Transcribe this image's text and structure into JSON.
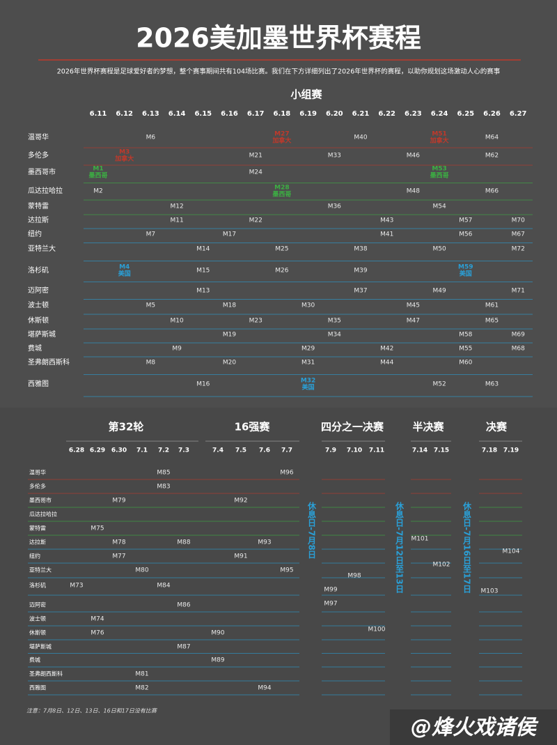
{
  "title": "2026美加墨世界杯赛程",
  "subtitle": "2026年世界杯赛程是足球爱好者的梦想，整个赛事期间共有104场比赛。我们在下方详细列出了2026年世界杯的赛程，以助你规划这场激动人心的赛事",
  "group_stage": {
    "title": "小组赛",
    "dates": [
      "6.11",
      "6.12",
      "6.13",
      "6.14",
      "6.15",
      "6.16",
      "6.17",
      "6.18",
      "6.19",
      "6.20",
      "6.21",
      "6.22",
      "6.23",
      "6.24",
      "6.25",
      "6.26",
      "6.27"
    ],
    "rows": [
      {
        "city": "温哥华",
        "color": "#c0392b",
        "cells": [
          null,
          null,
          "M6",
          null,
          null,
          null,
          null,
          {
            "label": "M27",
            "team": "加拿大"
          },
          null,
          null,
          "M40",
          null,
          null,
          {
            "label": "M51",
            "team": "加拿大"
          },
          null,
          "M64",
          null
        ]
      },
      {
        "city": "多伦多",
        "color": "#c0392b",
        "cells": [
          null,
          {
            "label": "M3",
            "team": "加拿大"
          },
          null,
          null,
          null,
          null,
          "M21",
          null,
          null,
          "M33",
          null,
          null,
          "M46",
          null,
          null,
          "M62",
          null
        ]
      },
      {
        "city": "墨西哥市",
        "color": "#3cb043",
        "cells": [
          {
            "label": "M1",
            "team": "墨西哥"
          },
          null,
          null,
          null,
          null,
          null,
          "M24",
          null,
          null,
          null,
          null,
          null,
          null,
          {
            "label": "M53",
            "team": "墨西哥"
          },
          null,
          null,
          null
        ]
      },
      {
        "city": "瓜达拉哈拉",
        "color": "#3cb043",
        "cells": [
          "M2",
          null,
          null,
          null,
          null,
          null,
          null,
          {
            "label": "M28",
            "team": "墨西哥"
          },
          null,
          null,
          null,
          null,
          "M48",
          null,
          null,
          "M66",
          null
        ]
      },
      {
        "city": "蒙特雷",
        "color": "#3cb043",
        "cells": [
          null,
          null,
          null,
          "M12",
          null,
          null,
          null,
          null,
          null,
          "M36",
          null,
          null,
          null,
          "M54",
          null,
          null,
          null
        ]
      },
      {
        "city": "达拉斯",
        "color": "#2a9fd6",
        "cells": [
          null,
          null,
          null,
          "M11",
          null,
          null,
          "M22",
          null,
          null,
          null,
          null,
          "M43",
          null,
          null,
          "M57",
          null,
          "M70"
        ]
      },
      {
        "city": "纽约",
        "color": "#2a9fd6",
        "cells": [
          null,
          null,
          "M7",
          null,
          null,
          "M17",
          null,
          null,
          null,
          null,
          null,
          "M41",
          null,
          null,
          "M56",
          null,
          "M67"
        ]
      },
      {
        "city": "亚特兰大",
        "color": "#2a9fd6",
        "cells": [
          null,
          null,
          null,
          null,
          "M14",
          null,
          null,
          "M25",
          null,
          null,
          "M38",
          null,
          null,
          "M50",
          null,
          null,
          "M72"
        ]
      },
      {
        "city": "洛杉矶",
        "color": "#2a9fd6",
        "cells": [
          null,
          {
            "label": "M4",
            "team": "美国"
          },
          null,
          null,
          "M15",
          null,
          null,
          "M26",
          null,
          null,
          "M39",
          null,
          null,
          null,
          {
            "label": "M59",
            "team": "美国"
          },
          null,
          null
        ]
      },
      {
        "city": "迈阿密",
        "color": "#2a9fd6",
        "cells": [
          null,
          null,
          null,
          null,
          "M13",
          null,
          null,
          null,
          null,
          null,
          "M37",
          null,
          null,
          "M49",
          null,
          null,
          "M71"
        ]
      },
      {
        "city": "波士顿",
        "color": "#2a9fd6",
        "cells": [
          null,
          null,
          "M5",
          null,
          null,
          "M18",
          null,
          null,
          "M30",
          null,
          null,
          null,
          "M45",
          null,
          null,
          "M61",
          null
        ]
      },
      {
        "city": "休斯顿",
        "color": "#2a9fd6",
        "cells": [
          null,
          null,
          null,
          "M10",
          null,
          null,
          "M23",
          null,
          null,
          "M35",
          null,
          null,
          "M47",
          null,
          null,
          "M65",
          null
        ]
      },
      {
        "city": "堪萨斯城",
        "color": "#2a9fd6",
        "cells": [
          null,
          null,
          null,
          null,
          null,
          "M19",
          null,
          null,
          null,
          "M34",
          null,
          null,
          null,
          null,
          "M58",
          null,
          "M69"
        ]
      },
      {
        "city": "费城",
        "color": "#2a9fd6",
        "cells": [
          null,
          null,
          null,
          "M9",
          null,
          null,
          null,
          null,
          "M29",
          null,
          null,
          "M42",
          null,
          null,
          "M55",
          null,
          "M68"
        ]
      },
      {
        "city": "圣弗朗西斯科",
        "color": "#2a9fd6",
        "cells": [
          null,
          null,
          "M8",
          null,
          null,
          "M20",
          null,
          null,
          "M31",
          null,
          null,
          "M44",
          null,
          null,
          "M60",
          null,
          null
        ]
      },
      {
        "city": "西雅图",
        "color": "#2a9fd6",
        "cells": [
          null,
          null,
          null,
          null,
          "M16",
          null,
          null,
          null,
          {
            "label": "M32",
            "team": "美国"
          },
          null,
          null,
          null,
          null,
          "M52",
          null,
          "M63",
          null
        ]
      }
    ]
  },
  "knockout": {
    "rounds": [
      {
        "title": "第32轮",
        "dates": [
          "6.28",
          "6.29",
          "6.30",
          "7.1",
          "7.2",
          "7.3"
        ]
      },
      {
        "title": "16强赛",
        "dates": [
          "7.4",
          "7.5",
          "7.6",
          "7.7"
        ]
      },
      {
        "title": "四分之一决赛",
        "dates": [
          "7.9",
          "7.10",
          "7.11"
        ],
        "rows": [
          [
            null,
            "M98",
            null
          ],
          [
            "M99",
            null,
            null
          ],
          [
            "M97",
            null,
            null
          ],
          [
            null,
            null,
            "M100"
          ]
        ]
      },
      {
        "title": "半决赛",
        "dates": [
          "7.14",
          "7.15"
        ],
        "rows": [
          [
            "M101",
            null
          ],
          [
            null,
            "M102"
          ]
        ]
      },
      {
        "title": "决赛",
        "dates": [
          "7.18",
          "7.19"
        ],
        "rows": [
          [
            null,
            "M104"
          ],
          [
            "M103",
            null
          ]
        ]
      }
    ],
    "rows": [
      {
        "city": "温哥华",
        "color": "#c0392b",
        "cells": [
          null,
          null,
          null,
          null,
          "M85",
          null,
          null,
          null,
          null,
          "M96"
        ]
      },
      {
        "city": "多伦多",
        "color": "#c0392b",
        "cells": [
          null,
          null,
          null,
          null,
          "M83",
          null,
          null,
          null,
          null,
          null
        ]
      },
      {
        "city": "墨西哥市",
        "color": "#3cb043",
        "cells": [
          null,
          null,
          "M79",
          null,
          null,
          null,
          null,
          "M92",
          null,
          null
        ]
      },
      {
        "city": "瓜达拉哈拉",
        "color": "#3cb043",
        "cells": [
          null,
          null,
          null,
          null,
          null,
          null,
          null,
          null,
          null,
          null
        ]
      },
      {
        "city": "蒙特雷",
        "color": "#3cb043",
        "cells": [
          null,
          "M75",
          null,
          null,
          null,
          null,
          null,
          null,
          null,
          null
        ]
      },
      {
        "city": "达拉斯",
        "color": "#2a9fd6",
        "cells": [
          null,
          null,
          "M78",
          null,
          null,
          "M88",
          null,
          null,
          "M93",
          null
        ]
      },
      {
        "city": "纽约",
        "color": "#2a9fd6",
        "cells": [
          null,
          null,
          "M77",
          null,
          null,
          null,
          null,
          "M91",
          null,
          null
        ]
      },
      {
        "city": "亚特兰大",
        "color": "#2a9fd6",
        "cells": [
          null,
          null,
          null,
          "M80",
          null,
          null,
          null,
          null,
          null,
          "M95"
        ]
      },
      {
        "city": "洛杉矶",
        "color": "#2a9fd6",
        "cells": [
          "M73",
          null,
          null,
          null,
          "M84",
          null,
          null,
          null,
          null,
          null
        ]
      },
      {
        "city": "迈阿密",
        "color": "#2a9fd6",
        "cells": [
          null,
          null,
          null,
          null,
          null,
          "M86",
          null,
          null,
          null,
          null
        ]
      },
      {
        "city": "波士顿",
        "color": "#2a9fd6",
        "cells": [
          null,
          "M74",
          null,
          null,
          null,
          null,
          null,
          null,
          null,
          null
        ]
      },
      {
        "city": "休斯顿",
        "color": "#2a9fd6",
        "cells": [
          null,
          "M76",
          null,
          null,
          null,
          null,
          "M90",
          null,
          null,
          null
        ]
      },
      {
        "city": "堪萨斯城",
        "color": "#2a9fd6",
        "cells": [
          null,
          null,
          null,
          null,
          null,
          "M87",
          null,
          null,
          null,
          null
        ]
      },
      {
        "city": "费城",
        "color": "#2a9fd6",
        "cells": [
          null,
          null,
          null,
          null,
          null,
          null,
          "M89",
          null,
          null,
          null
        ]
      },
      {
        "city": "圣弗朗西斯科",
        "color": "#2a9fd6",
        "cells": [
          null,
          null,
          null,
          "M81",
          null,
          null,
          null,
          null,
          null,
          null
        ]
      },
      {
        "city": "西雅图",
        "color": "#2a9fd6",
        "cells": [
          null,
          null,
          null,
          "M82",
          null,
          null,
          null,
          null,
          "M94",
          null
        ]
      }
    ],
    "rest_days": [
      "休息日-7月8日",
      "休息日-7月12日至13日",
      "休息日-7月16日至17日"
    ]
  },
  "note": "注意：7月8日、12日、13日、16日和17日没有比赛",
  "watermark": "@烽火戏诸侯"
}
